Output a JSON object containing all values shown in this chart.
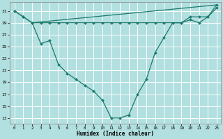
{
  "bg_color": "#b2dfdf",
  "grid_color": "#ffffff",
  "line_color": "#1a7a6e",
  "xlabel": "Humidex (Indice chaleur)",
  "xlim": [
    -0.5,
    23.5
  ],
  "ylim": [
    12.0,
    32.5
  ],
  "yticks": [
    13,
    15,
    17,
    19,
    21,
    23,
    25,
    27,
    29,
    31
  ],
  "xticks": [
    0,
    1,
    2,
    3,
    4,
    5,
    6,
    7,
    8,
    9,
    10,
    11,
    12,
    13,
    14,
    15,
    16,
    17,
    18,
    19,
    20,
    21,
    22,
    23
  ],
  "line1_x": [
    0,
    1,
    2,
    3,
    4,
    5,
    6,
    7,
    8,
    9,
    10,
    11,
    12,
    13,
    14,
    15,
    16,
    17,
    18,
    19,
    20,
    21,
    22,
    23
  ],
  "line1_y": [
    31,
    30,
    29,
    29,
    29,
    29,
    29,
    29,
    29,
    29,
    29,
    29,
    29,
    29,
    29,
    29,
    29,
    29,
    29,
    29,
    29.5,
    29,
    30,
    31.5
  ],
  "line2_x": [
    0,
    1,
    2,
    3,
    4,
    5,
    6,
    7,
    8,
    9,
    10,
    11,
    12,
    13,
    14,
    15,
    16,
    17,
    18,
    19,
    20,
    21,
    22,
    23
  ],
  "line2_y": [
    31,
    30,
    29,
    25.5,
    26,
    22,
    20.5,
    19.5,
    18.5,
    17.5,
    16,
    13,
    13,
    13.5,
    17,
    19.5,
    24,
    26.5,
    29,
    29,
    30,
    30,
    30,
    32
  ],
  "line3_x": [
    2,
    23
  ],
  "line3_y": [
    29,
    32
  ]
}
